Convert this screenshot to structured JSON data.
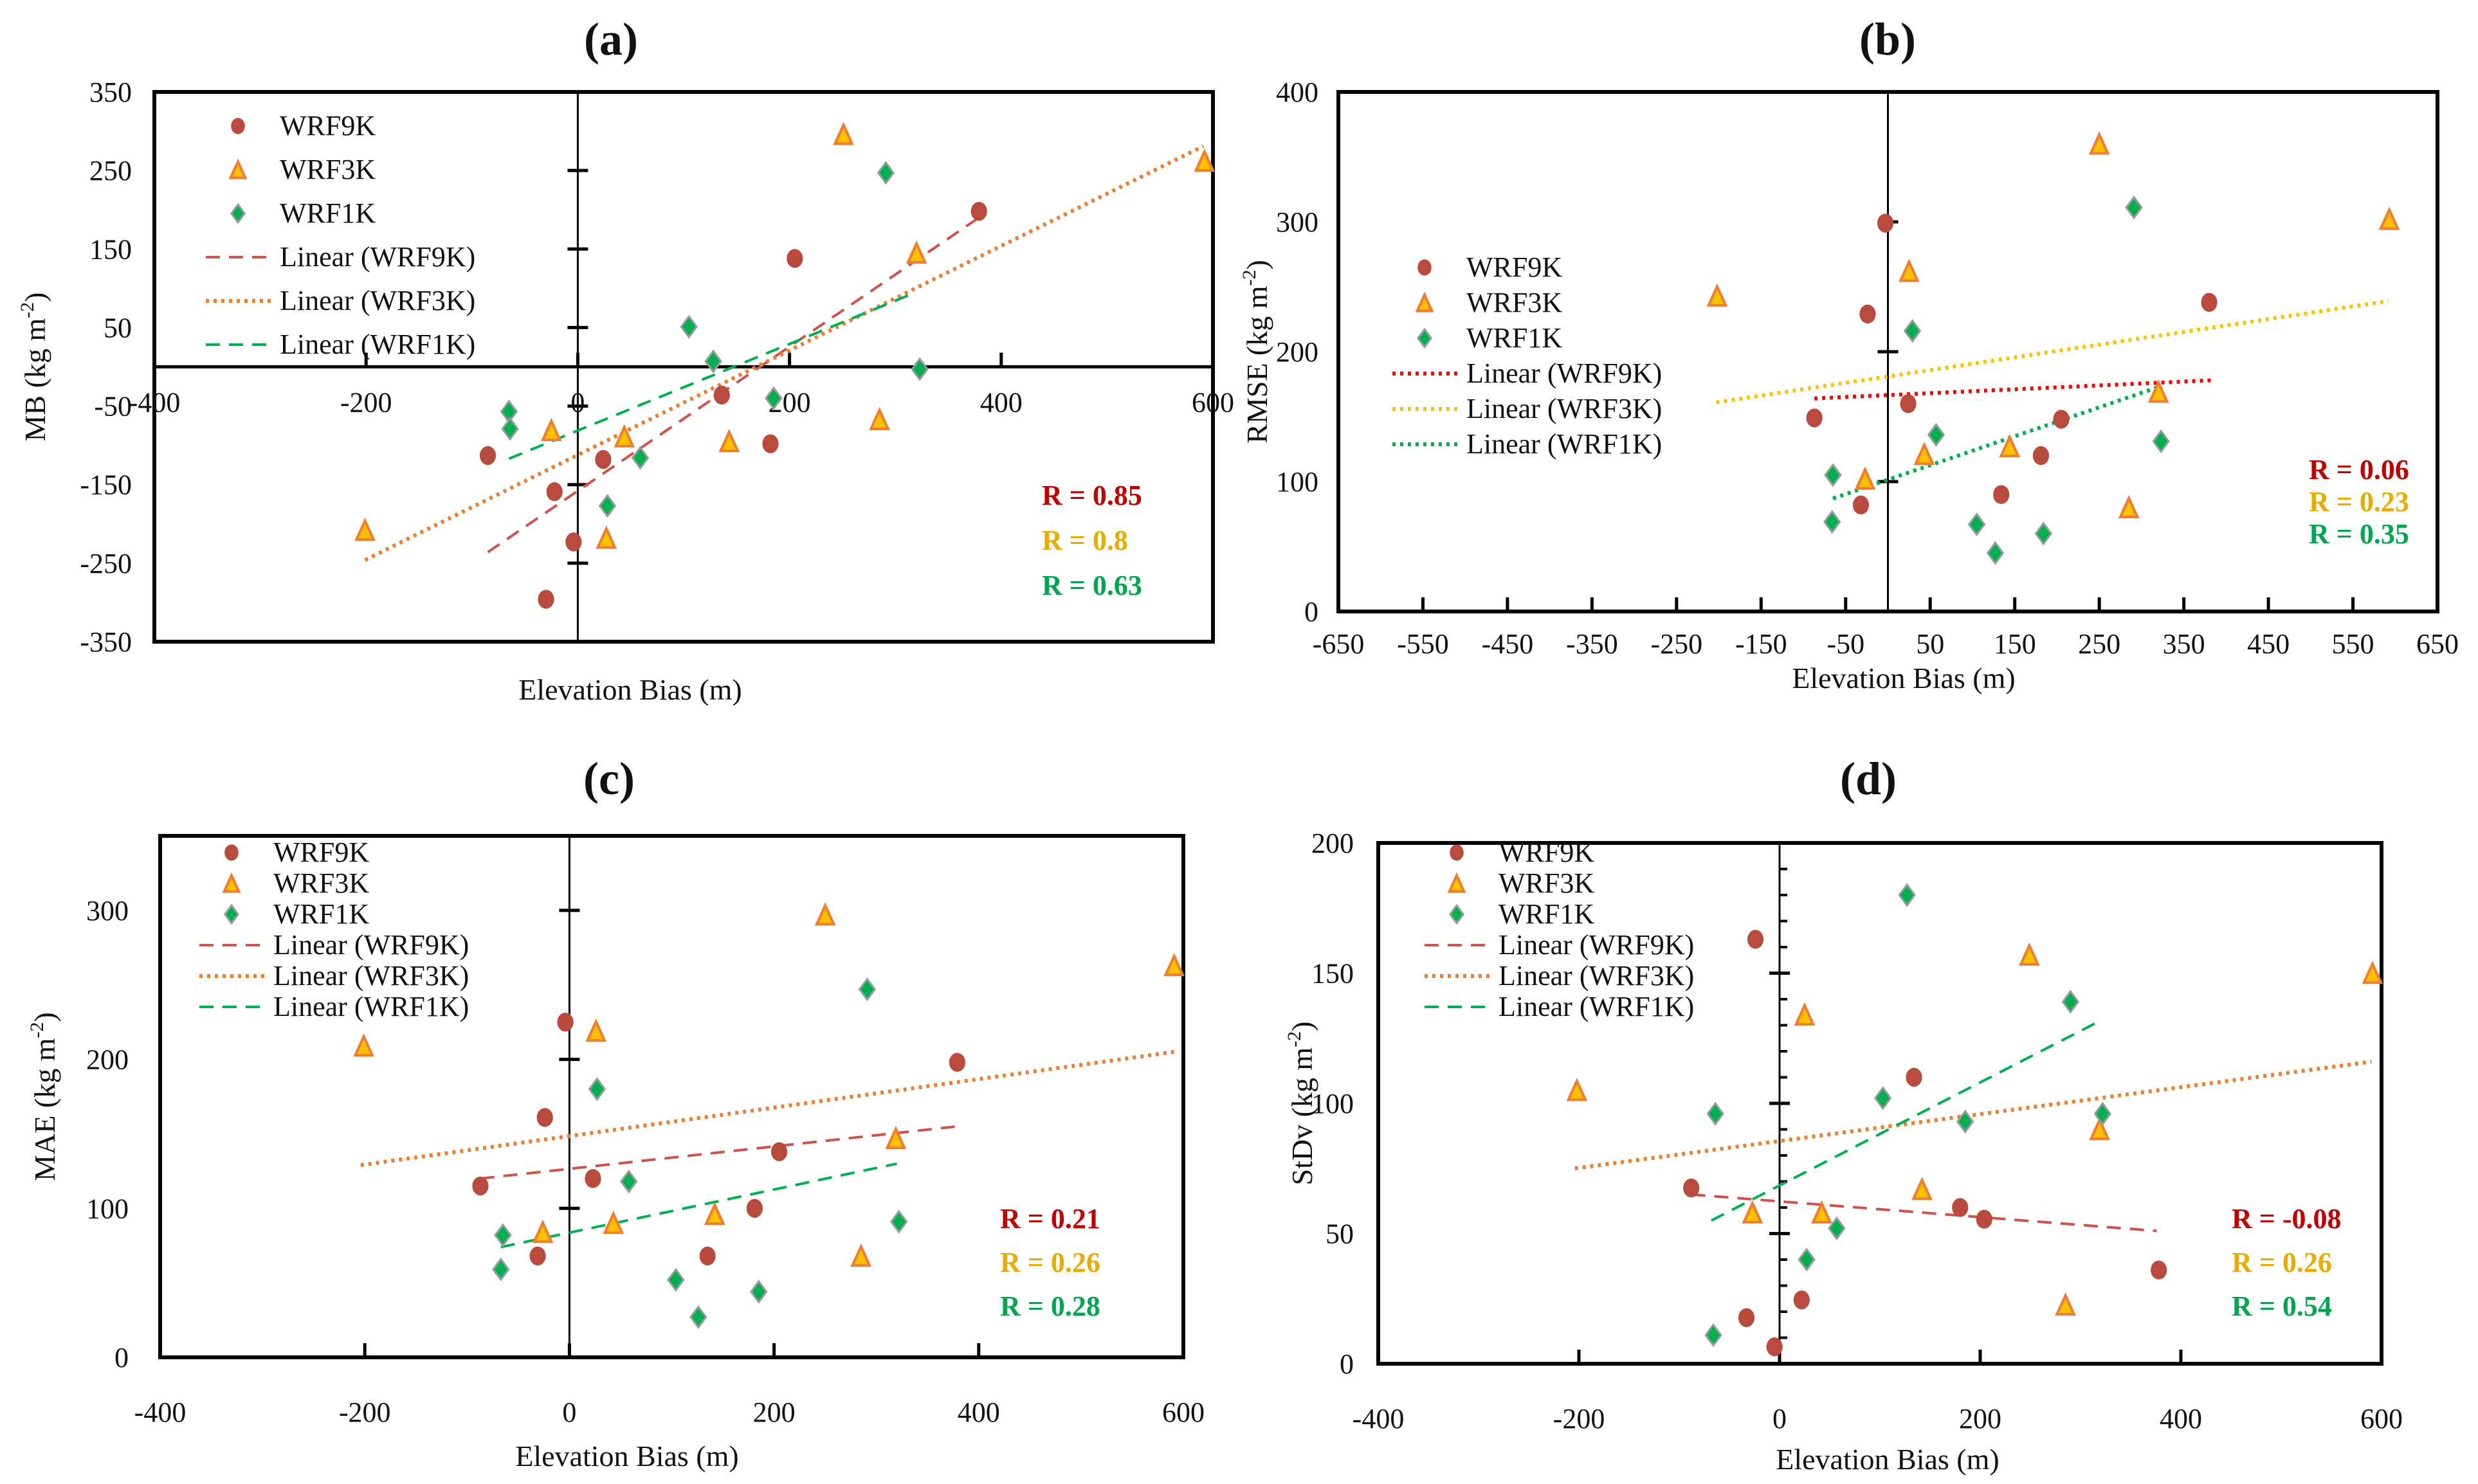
{
  "figure": {
    "series_names": [
      "WRF9K",
      "WRF3K",
      "WRF1K"
    ],
    "legend_labels": [
      "WRF9K",
      "WRF3K",
      "WRF1K",
      "Linear (WRF9K)",
      "Linear (WRF3K)",
      "Linear (WRF1K)"
    ],
    "colors": {
      "WRF9K_marker": "#B84A3E",
      "WRF3K_marker_fill": "#FFC000",
      "WRF3K_marker_edge": "#ED7D31",
      "WRF1K_marker": "#00B050",
      "R_WRF9K": "#C00000",
      "R_WRF3K": "#E8AC00",
      "R_WRF1K": "#00A550"
    }
  },
  "chart_data": [
    {
      "panel": "(a)",
      "type": "scatter",
      "title": "(a)",
      "xlabel": "Elevation Bias (m)",
      "ylabel": "MB (kg m-2)",
      "xlim": [
        -400,
        600
      ],
      "ylim": [
        -350,
        350
      ],
      "xticks": [
        -400,
        -200,
        0,
        200,
        400,
        600
      ],
      "yticks": [
        -350,
        -250,
        -150,
        -50,
        50,
        150,
        250,
        350
      ],
      "axes_cross_at_origin": true,
      "grid": false,
      "legend_position": "top-left",
      "series": [
        {
          "name": "WRF9K",
          "marker": "circle",
          "x": [
            379,
            205,
            136,
            182,
            -85,
            24,
            -22,
            -4,
            -30
          ],
          "y": [
            198,
            138,
            -36,
            -98,
            -113,
            -118,
            -159,
            -223,
            -296
          ]
        },
        {
          "name": "WRF3K",
          "marker": "triangle",
          "x": [
            251,
            592,
            320,
            285,
            143,
            44,
            -25,
            -201,
            27
          ],
          "y": [
            296,
            262,
            145,
            -67,
            -95,
            -89,
            -81,
            -208,
            -218
          ]
        },
        {
          "name": "WRF1K",
          "marker": "diamond",
          "x": [
            291,
            105,
            128,
            323,
            -65,
            -64,
            59,
            28,
            185
          ],
          "y": [
            247,
            51,
            7,
            -3,
            -57,
            -79,
            -116,
            -177,
            -40
          ]
        }
      ],
      "trendlines": [
        {
          "name": "Linear (WRF9K)",
          "style": "dashed",
          "color": "#D0504A",
          "x": [
            -85,
            379
          ],
          "y": [
            -236,
            190
          ]
        },
        {
          "name": "Linear (WRF3K)",
          "style": "dotted",
          "color": "#ED7D31",
          "x": [
            -201,
            591
          ],
          "y": [
            -246,
            281
          ]
        },
        {
          "name": "Linear (WRF1K)",
          "style": "dashed",
          "color": "#00B050",
          "x": [
            -65,
            316
          ],
          "y": [
            -117,
            93
          ]
        }
      ],
      "annotations": [
        "R = 0.85",
        "R = 0.8",
        "R = 0.63"
      ]
    },
    {
      "panel": "(b)",
      "type": "scatter",
      "title": "(b)",
      "xlabel": "Elevation Bias (m)",
      "ylabel": "RMSE (kg m-2)",
      "xlim": [
        -650,
        650
      ],
      "ylim": [
        0,
        400
      ],
      "xticks": [
        -650,
        -550,
        -450,
        -350,
        -250,
        -150,
        -50,
        50,
        150,
        250,
        350,
        450,
        550,
        650
      ],
      "yticks": [
        0,
        100,
        200,
        300,
        400
      ],
      "axes_cross_at_origin": false,
      "grid": false,
      "legend_position": "center-left",
      "series": [
        {
          "name": "WRF9K",
          "marker": "circle",
          "x": [
            -3,
            -24,
            -87,
            24,
            -32,
            134,
            181,
            205,
            380
          ],
          "y": [
            299,
            229,
            149,
            160,
            82,
            90,
            120,
            148,
            238
          ]
        },
        {
          "name": "WRF3K",
          "marker": "triangle",
          "x": [
            -202,
            25,
            -27,
            43,
            144,
            250,
            285,
            320,
            593
          ],
          "y": [
            243,
            262,
            102,
            121,
            127,
            360,
            80,
            169,
            302
          ]
        },
        {
          "name": "WRF1K",
          "marker": "diamond",
          "x": [
            -65,
            -66,
            29,
            57,
            105,
            127,
            184,
            291,
            323
          ],
          "y": [
            105,
            69,
            216,
            136,
            67,
            45,
            60,
            311,
            131
          ]
        }
      ],
      "trendlines": [
        {
          "name": "Linear (WRF9K)",
          "style": "dotted",
          "color": "#FF0000",
          "x": [
            -87,
            383
          ],
          "y": [
            164,
            178
          ]
        },
        {
          "name": "Linear (WRF3K)",
          "style": "dotted",
          "color": "#FFC000",
          "x": [
            -203,
            592
          ],
          "y": [
            161,
            239
          ]
        },
        {
          "name": "Linear (WRF1K)",
          "style": "dotted",
          "color": "#00B050",
          "x": [
            -65,
            321
          ],
          "y": [
            87,
            173
          ]
        }
      ],
      "annotations": [
        "R = 0.06",
        "R = 0.23",
        "R = 0.35"
      ]
    },
    {
      "panel": "(c)",
      "type": "scatter",
      "title": "(c)",
      "xlabel": "Elevation Bias (m)",
      "ylabel": "MAE (kg m-2)",
      "xlim": [
        -400,
        600
      ],
      "ylim": [
        0,
        350
      ],
      "xticks": [
        -400,
        -200,
        0,
        200,
        400,
        600
      ],
      "yticks": [
        0,
        100,
        200,
        300
      ],
      "axes_cross_at_origin": false,
      "grid": false,
      "legend_position": "top-left",
      "series": [
        {
          "name": "WRF9K",
          "marker": "circle",
          "x": [
            -4,
            -24,
            -87,
            23,
            -31,
            135,
            181,
            205,
            379
          ],
          "y": [
            225,
            161,
            115,
            120,
            68,
            68,
            100,
            138,
            198
          ]
        },
        {
          "name": "WRF3K",
          "marker": "triangle",
          "x": [
            -201,
            26,
            -26,
            43,
            142,
            250,
            285,
            319,
            591
          ],
          "y": [
            209,
            219,
            84,
            90,
            96,
            297,
            68,
            147,
            263
          ]
        },
        {
          "name": "WRF1K",
          "marker": "diamond",
          "x": [
            -65,
            -67,
            27,
            58,
            104,
            126,
            185,
            291,
            322
          ],
          "y": [
            82,
            59,
            180,
            118,
            52,
            27,
            44,
            247,
            91
          ]
        }
      ],
      "trendlines": [
        {
          "name": "Linear (WRF9K)",
          "style": "dashed",
          "color": "#D0504A",
          "x": [
            -87,
            379
          ],
          "y": [
            120,
            155
          ]
        },
        {
          "name": "Linear (WRF3K)",
          "style": "dotted",
          "color": "#ED7D31",
          "x": [
            -204,
            591
          ],
          "y": [
            129,
            205
          ]
        },
        {
          "name": "Linear (WRF1K)",
          "style": "dashed",
          "color": "#00B050",
          "x": [
            -67,
            320
          ],
          "y": [
            74,
            130
          ]
        }
      ],
      "annotations": [
        "R = 0.21",
        "R = 0.26",
        "R = 0.28"
      ]
    },
    {
      "panel": "(d)",
      "type": "scatter",
      "title": "(d)",
      "xlabel": "Elevation Bias (m)",
      "ylabel": "StDv (kg m-2)",
      "xlim": [
        -400,
        600
      ],
      "ylim": [
        0,
        200
      ],
      "xticks": [
        -400,
        -200,
        0,
        200,
        400,
        600
      ],
      "yticks": [
        0,
        50,
        100,
        150,
        200
      ],
      "axes_cross_at_origin": false,
      "grid": false,
      "legend_position": "top-left",
      "series": [
        {
          "name": "WRF9K",
          "marker": "circle",
          "x": [
            -24,
            -88,
            134,
            180,
            204,
            378,
            22,
            -33,
            -5
          ],
          "y": [
            163,
            67.5,
            110,
            60,
            55.5,
            36,
            24.5,
            17.7,
            6.5
          ]
        },
        {
          "name": "WRF3K",
          "marker": "triangle",
          "x": [
            -202,
            25,
            -27,
            42,
            142,
            249,
            285,
            319,
            591
          ],
          "y": [
            105,
            134,
            58,
            58,
            67,
            157,
            22.6,
            90,
            150
          ]
        },
        {
          "name": "WRF1K",
          "marker": "diamond",
          "x": [
            127,
            -64,
            103,
            185,
            290,
            322,
            57,
            27,
            -66
          ],
          "y": [
            180,
            96,
            102,
            93,
            139,
            96,
            52,
            40,
            11
          ]
        }
      ],
      "trendlines": [
        {
          "name": "Linear (WRF9K)",
          "style": "dashed",
          "color": "#D0504A",
          "x": [
            -88,
            376
          ],
          "y": [
            65,
            51
          ]
        },
        {
          "name": "Linear (WRF3K)",
          "style": "dotted",
          "color": "#ED7D31",
          "x": [
            -204,
            590
          ],
          "y": [
            75,
            116
          ]
        },
        {
          "name": "Linear (WRF1K)",
          "style": "dashed",
          "color": "#00B050",
          "x": [
            -68,
            316
          ],
          "y": [
            55,
            131
          ]
        }
      ],
      "annotations": [
        "R = -0.08",
        "R = 0.26",
        "R = 0.54"
      ]
    }
  ]
}
